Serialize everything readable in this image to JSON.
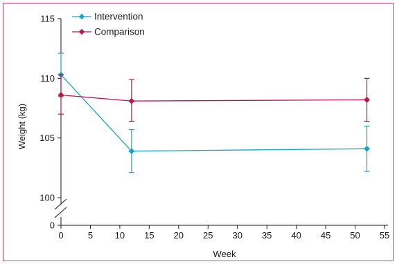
{
  "chart_data": {
    "type": "line",
    "xlabel": "Week",
    "ylabel": "Weight (kg)",
    "xlim": [
      0,
      55
    ],
    "x_ticks": [
      "0",
      "5",
      "10",
      "15",
      "20",
      "25",
      "30",
      "35",
      "40",
      "45",
      "50",
      "55"
    ],
    "y_ticks_upper": [
      "100",
      "105",
      "110",
      "115"
    ],
    "y_tick_zero": "0",
    "ylim_upper": [
      100,
      115
    ],
    "broken_axis": true,
    "grid": false,
    "legend_position": "top-left",
    "series": [
      {
        "name": "Intervention",
        "color": "#1ba3c6",
        "marker": "diamond",
        "x": [
          0,
          12,
          52
        ],
        "y": [
          110.3,
          103.9,
          104.1
        ],
        "err_low": [
          108.5,
          102.1,
          102.2
        ],
        "err_high": [
          112.1,
          105.7,
          106.0
        ]
      },
      {
        "name": "Comparison",
        "color": "#b8174d",
        "marker": "diamond",
        "x": [
          0,
          12,
          52
        ],
        "y": [
          108.6,
          108.1,
          108.2
        ],
        "err_low": [
          107.0,
          106.4,
          106.4
        ],
        "err_high": [
          110.3,
          109.9,
          110.0
        ]
      }
    ]
  }
}
